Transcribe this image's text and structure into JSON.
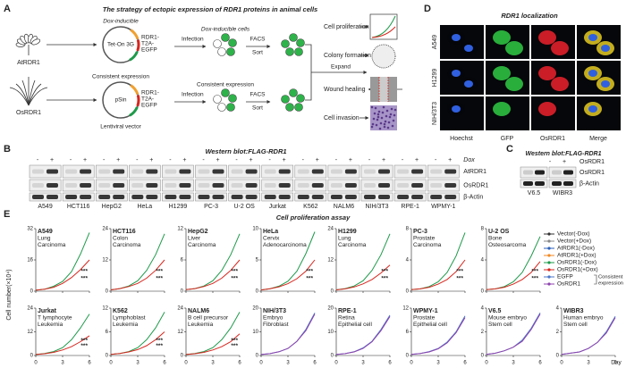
{
  "panel_a": {
    "label": "A",
    "title": "The strategy of ectopic expression of RDR1 proteins in animal cells",
    "plants": [
      "AtRDR1",
      "OsRDR1"
    ],
    "inducible": {
      "header": "Dox-inducible",
      "vector": "Tet-On 3G",
      "insert": [
        "RDR1-",
        "T2A-",
        "EGFP"
      ],
      "step1": "Infection",
      "cells": "Dox-inducible cells",
      "step2": [
        "FACS",
        "Sort"
      ]
    },
    "consistent": {
      "header": "Consistent expression",
      "vector": "pSin",
      "insert": [
        "RDR1-",
        "T2A-",
        "EGFP"
      ],
      "step1": "Infection",
      "cells": "Consistent expression",
      "step2": [
        "FACS",
        "Sort"
      ],
      "footer": "Lentiviral vector"
    },
    "expand": "Expand",
    "assays": [
      "Cell proliferation",
      "Colony formation",
      "Wound healing",
      "Cell invasion"
    ]
  },
  "panel_d": {
    "label": "D",
    "title": "RDR1 localization",
    "rows": [
      "A549",
      "H1299",
      "NIH/3T3"
    ],
    "columns": [
      {
        "name": "Hoechst",
        "color": "#2a4fd0"
      },
      {
        "name": "GFP",
        "color": "#1a9a3a"
      },
      {
        "name": "OsRDR1",
        "color": "#d0191f"
      },
      {
        "name": "Merge",
        "color": "#222222"
      }
    ]
  },
  "panel_b": {
    "label": "B",
    "title": "Western blot:FLAG-RDR1",
    "signs": [
      "-",
      "+"
    ],
    "treatment": "Dox",
    "cell_lines": [
      {
        "name": "A549",
        "color": "#c8161d"
      },
      {
        "name": "HCT116",
        "color": "#c8161d"
      },
      {
        "name": "HepG2",
        "color": "#c8161d"
      },
      {
        "name": "HeLa",
        "color": "#c8161d"
      },
      {
        "name": "H1299",
        "color": "#c8161d"
      },
      {
        "name": "PC-3",
        "color": "#c8161d"
      },
      {
        "name": "U-2 OS",
        "color": "#c8161d"
      },
      {
        "name": "Jurkat",
        "color": "#c8161d"
      },
      {
        "name": "K562",
        "color": "#c8161d"
      },
      {
        "name": "NALM6",
        "color": "#c8161d"
      },
      {
        "name": "NIH/3T3",
        "color": "#1f3f99"
      },
      {
        "name": "RPE-1",
        "color": "#1f3f99"
      },
      {
        "name": "WPMY-1",
        "color": "#1f3f99"
      }
    ],
    "bands": [
      "AtRDR1",
      "OsRDR1",
      "β-Actin"
    ]
  },
  "panel_c": {
    "label": "C",
    "title": "Western blot:FLAG-RDR1",
    "signs": [
      "-",
      "+"
    ],
    "treatment": "OsRDR1",
    "cell_lines": [
      {
        "name": "V6.5",
        "color": "#1f3f99"
      },
      {
        "name": "WIBR3",
        "color": "#1f3f99"
      }
    ],
    "bands": [
      "OsRDR1",
      "β-Actin"
    ]
  },
  "panel_e": {
    "label": "E",
    "title": "Cell proliferation assay",
    "type": "line",
    "y_label": "Cell number(×10⁴)",
    "x_label": "Day",
    "x": [
      0,
      1,
      2,
      3,
      4,
      5,
      6
    ],
    "xlim": [
      0,
      6
    ],
    "xticks": [
      0,
      3,
      6
    ],
    "legend": [
      {
        "name": "Vector(-Dox)",
        "color": "#333333"
      },
      {
        "name": "Vector(+Dox)",
        "color": "#888888"
      },
      {
        "name": "AtRDR1(-Dox)",
        "color": "#2b5fb8"
      },
      {
        "name": "AtRDR1(+Dox)",
        "color": "#f08a24"
      },
      {
        "name": "OsRDR1(-Dox)",
        "color": "#1e9a4a"
      },
      {
        "name": "OsRDR1(+Dox)",
        "color": "#d7261e"
      },
      {
        "name": "EGFP",
        "color": "#4a74c9"
      },
      {
        "name": "OsRDR1",
        "color": "#8e44ad"
      }
    ],
    "legend_note": [
      "Consistent",
      "expression"
    ],
    "charts": [
      {
        "name": "A549",
        "description": [
          "Lung",
          "Carcinoma"
        ],
        "label_color": "#c8161d",
        "ylim": [
          0,
          32
        ],
        "yticks": [
          0,
          16,
          32
        ],
        "stars": [
          "***",
          "***"
        ],
        "series": [
          {
            "color": "#1e9a4a",
            "values": [
              0.5,
              1,
              2.5,
              5,
              10,
              19,
              30
            ]
          },
          {
            "color": "#d7261e",
            "values": [
              0.5,
              1,
              2,
              4,
              7,
              11,
              16
            ]
          }
        ]
      },
      {
        "name": "HCT116",
        "description": [
          "Colon",
          "Carcinoma"
        ],
        "label_color": "#c8161d",
        "ylim": [
          0,
          24
        ],
        "yticks": [
          0,
          12,
          24
        ],
        "stars": [
          "***",
          "***"
        ],
        "series": [
          {
            "color": "#1e9a4a",
            "values": [
              0.5,
              1,
              2,
              4,
              8,
              14,
              22
            ]
          },
          {
            "color": "#d7261e",
            "values": [
              0.5,
              1,
              1.8,
              3,
              5,
              8,
              12
            ]
          }
        ]
      },
      {
        "name": "HepG2",
        "description": [
          "Liver",
          "Carcinoma"
        ],
        "label_color": "#c8161d",
        "ylim": [
          0,
          12
        ],
        "yticks": [
          0,
          6,
          12
        ],
        "stars": [
          "***",
          "***"
        ],
        "series": [
          {
            "color": "#1e9a4a",
            "values": [
              0.3,
              0.5,
              1,
              2,
              4,
              7,
              11
            ]
          },
          {
            "color": "#d7261e",
            "values": [
              0.3,
              0.5,
              0.9,
              1.5,
              2.5,
              4,
              6
            ]
          }
        ]
      },
      {
        "name": "HeLa",
        "description": [
          "Cervix",
          "Adenocarcinoma"
        ],
        "label_color": "#c8161d",
        "ylim": [
          0,
          10
        ],
        "yticks": [
          0,
          5,
          10
        ],
        "stars": [
          "***",
          "***"
        ],
        "series": [
          {
            "color": "#1e9a4a",
            "values": [
              0.2,
              0.4,
              0.8,
              1.6,
              3.2,
              6,
              9.5
            ]
          },
          {
            "color": "#d7261e",
            "values": [
              0.2,
              0.4,
              0.7,
              1.2,
              2,
              3.2,
              5
            ]
          }
        ]
      },
      {
        "name": "H1299",
        "description": [
          "Lung",
          "Carcinoma"
        ],
        "label_color": "#c8161d",
        "ylim": [
          0,
          24
        ],
        "yticks": [
          0,
          12,
          24
        ],
        "stars": [
          "***",
          "***"
        ],
        "series": [
          {
            "color": "#1e9a4a",
            "values": [
              0.5,
              1,
              2,
              4,
              8,
              14,
              22
            ]
          },
          {
            "color": "#d7261e",
            "values": [
              0.5,
              0.9,
              1.6,
              2.8,
              4.5,
              7,
              10
            ]
          }
        ]
      },
      {
        "name": "PC-3",
        "description": [
          "Prostate",
          "Carcinoma"
        ],
        "label_color": "#c8161d",
        "ylim": [
          0,
          8
        ],
        "yticks": [
          0,
          4,
          8
        ],
        "stars": [
          "***",
          "***"
        ],
        "series": [
          {
            "color": "#1e9a4a",
            "values": [
              0.2,
              0.3,
              0.6,
              1.2,
              2.4,
              4.5,
              7.5
            ]
          },
          {
            "color": "#d7261e",
            "values": [
              0.2,
              0.3,
              0.5,
              0.9,
              1.5,
              2.5,
              4
            ]
          }
        ]
      },
      {
        "name": "U-2 OS",
        "description": [
          "Bone",
          "Osteosarcoma"
        ],
        "label_color": "#c8161d",
        "ylim": [
          0,
          8
        ],
        "yticks": [
          0,
          4,
          8
        ],
        "stars": [
          "***",
          "***"
        ],
        "series": [
          {
            "color": "#1e9a4a",
            "values": [
              0.2,
              0.3,
              0.6,
              1.2,
              2.4,
              4.5,
              7
            ]
          },
          {
            "color": "#d7261e",
            "values": [
              0.2,
              0.3,
              0.5,
              0.9,
              1.5,
              2.4,
              3.8
            ]
          }
        ]
      },
      {
        "name": "Jurkat",
        "description": [
          "T lymphocyte",
          "Leukemia"
        ],
        "label_color": "#c8161d",
        "ylim": [
          0,
          24
        ],
        "yticks": [
          0,
          12,
          24
        ],
        "stars": [
          "***",
          "***"
        ],
        "series": [
          {
            "color": "#1e9a4a",
            "values": [
              0.5,
              1,
              2,
              4,
              8,
              14,
              21
            ]
          },
          {
            "color": "#d7261e",
            "values": [
              0.5,
              0.9,
              1.6,
              2.8,
              4.5,
              7,
              10
            ]
          }
        ]
      },
      {
        "name": "K562",
        "description": [
          "Lymphoblast",
          "Leukemia"
        ],
        "label_color": "#c8161d",
        "ylim": [
          0,
          12
        ],
        "yticks": [
          0,
          6,
          12
        ],
        "stars": [
          "***",
          "***"
        ],
        "series": [
          {
            "color": "#1e9a4a",
            "values": [
              0.3,
              0.5,
              1,
              2,
              4,
              7,
              11
            ]
          },
          {
            "color": "#d7261e",
            "values": [
              0.3,
              0.5,
              0.9,
              1.5,
              2.5,
              4,
              6
            ]
          }
        ]
      },
      {
        "name": "NALM6",
        "description": [
          "B cell precursor",
          "Leukemia"
        ],
        "label_color": "#c8161d",
        "ylim": [
          0,
          24
        ],
        "yticks": [
          0,
          12,
          24
        ],
        "stars": [
          "***",
          "***"
        ],
        "series": [
          {
            "color": "#1e9a4a",
            "values": [
              0.5,
              1,
              2,
              4,
              8,
              14,
              22
            ]
          },
          {
            "color": "#d7261e",
            "values": [
              0.5,
              0.9,
              1.6,
              2.8,
              4.5,
              7,
              11
            ]
          }
        ]
      },
      {
        "name": "NIH/3T3",
        "description": [
          "Embryo",
          "Fibroblast"
        ],
        "label_color": "#1f3f99",
        "ylim": [
          0,
          20
        ],
        "yticks": [
          0,
          10,
          20
        ],
        "stars": [],
        "series": [
          {
            "color": "#4a74c9",
            "values": [
              0.4,
              0.8,
              1.6,
              3,
              6,
              11,
              18
            ]
          },
          {
            "color": "#8e44ad",
            "values": [
              0.4,
              0.8,
              1.6,
              3,
              6,
              10.5,
              17.5
            ]
          }
        ]
      },
      {
        "name": "RPE-1",
        "description": [
          "Retina",
          "Epithelial cell"
        ],
        "label_color": "#1f3f99",
        "ylim": [
          0,
          20
        ],
        "yticks": [
          0,
          10,
          20
        ],
        "stars": [],
        "series": [
          {
            "color": "#4a74c9",
            "values": [
              0.4,
              0.8,
              1.6,
              3.2,
              6,
              11,
              17
            ]
          },
          {
            "color": "#8e44ad",
            "values": [
              0.4,
              0.8,
              1.5,
              3,
              5.8,
              10.5,
              16.5
            ]
          }
        ]
      },
      {
        "name": "WPMY-1",
        "description": [
          "Prostate",
          "Epithelial cell"
        ],
        "label_color": "#1f3f99",
        "ylim": [
          0,
          12
        ],
        "yticks": [
          0,
          6,
          12
        ],
        "stars": [],
        "series": [
          {
            "color": "#4a74c9",
            "values": [
              0.3,
              0.5,
              1,
              1.8,
              3.4,
              6,
              10
            ]
          },
          {
            "color": "#8e44ad",
            "values": [
              0.3,
              0.5,
              0.9,
              1.7,
              3.2,
              5.8,
              9.6
            ]
          }
        ]
      },
      {
        "name": "V6.5",
        "description": [
          "Mouse embryo",
          "Stem cell"
        ],
        "label_color": "#1f3f99",
        "ylim": [
          0,
          4
        ],
        "yticks": [
          0,
          2,
          4
        ],
        "stars": [],
        "series": [
          {
            "color": "#4a74c9",
            "values": [
              0.1,
              0.2,
              0.4,
              0.7,
              1.3,
              2.3,
              3.6
            ]
          },
          {
            "color": "#8e44ad",
            "values": [
              0.1,
              0.2,
              0.4,
              0.7,
              1.2,
              2.2,
              3.5
            ]
          }
        ]
      },
      {
        "name": "WIBR3",
        "description": [
          "Human embryo",
          "Stem cell"
        ],
        "label_color": "#1f3f99",
        "ylim": [
          0,
          4
        ],
        "yticks": [
          0,
          2,
          4
        ],
        "stars": [],
        "series": [
          {
            "color": "#4a74c9",
            "values": [
              0.1,
              0.2,
              0.3,
              0.6,
              1.1,
              2,
              3.3
            ]
          },
          {
            "color": "#8e44ad",
            "values": [
              0.1,
              0.2,
              0.3,
              0.6,
              1.1,
              1.9,
              3.2
            ]
          }
        ]
      }
    ]
  }
}
